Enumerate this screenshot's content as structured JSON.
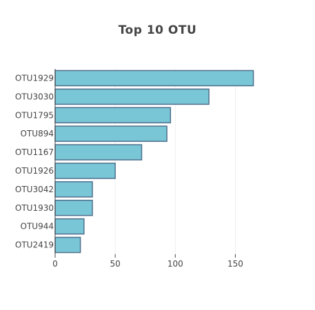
{
  "chart_data": {
    "type": "bar",
    "orientation": "horizontal",
    "title": "Top 10 OTU",
    "xlabel": "",
    "ylabel": "",
    "categories": [
      "OTU1929",
      "OTU3030",
      "OTU1795",
      "OTU894",
      "OTU1167",
      "OTU1926",
      "OTU3042",
      "OTU1930",
      "OTU944",
      "OTU2419"
    ],
    "values": [
      165,
      128,
      96,
      93,
      72,
      50,
      31,
      31,
      24,
      21
    ],
    "xlim": [
      0,
      175
    ],
    "xticks": [
      0,
      50,
      100,
      150
    ],
    "grid": true,
    "legend": "none",
    "bar_color": "#78c6d6",
    "bar_edge_color": "#4f6f8c"
  }
}
